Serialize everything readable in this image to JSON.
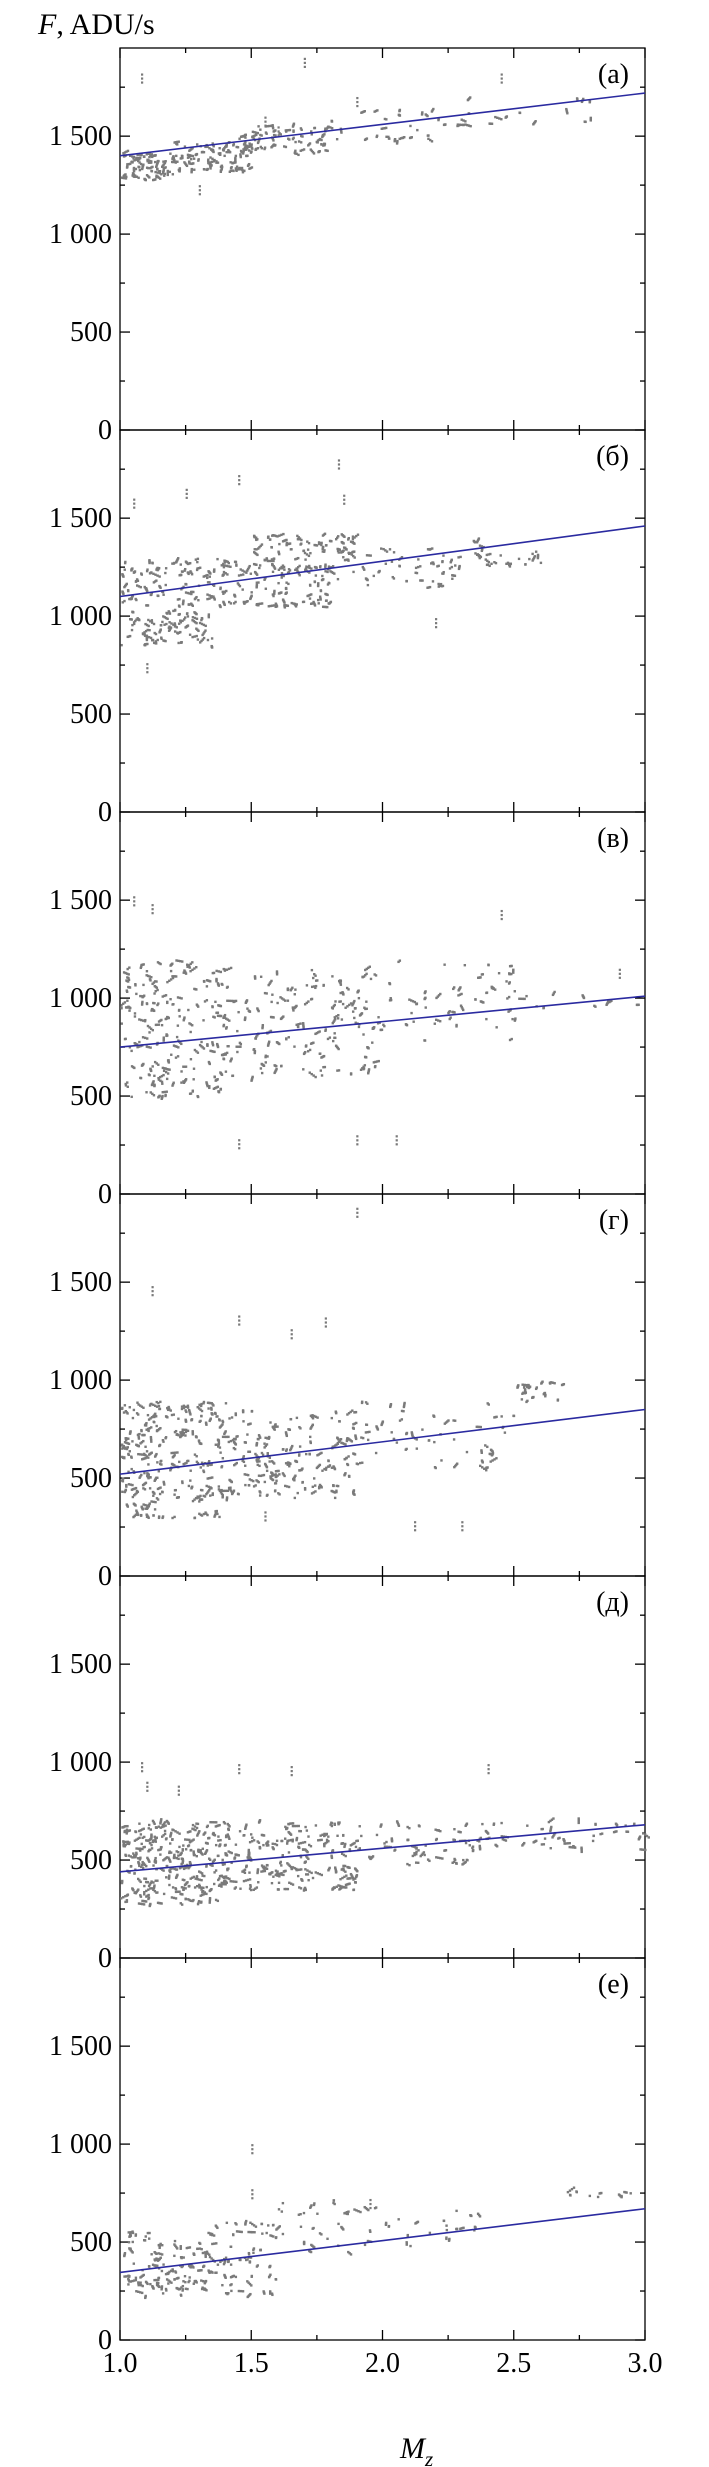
{
  "figure": {
    "ylabel_var": "F",
    "ylabel_unit": ", ADU/s",
    "xlabel_var": "M",
    "xlabel_sub": "z"
  },
  "chart_data": [
    {
      "type": "scatter",
      "panel_label": "(а)",
      "xlim": [
        1.0,
        3.0
      ],
      "ylim": [
        0,
        1950
      ],
      "x_ticks": [
        1.0,
        1.5,
        2.0,
        2.5,
        3.0
      ],
      "y_ticks": [
        0,
        500,
        1000,
        1500
      ],
      "y_tick_labels": [
        "0",
        "500",
        "1 000",
        "1 500"
      ],
      "x_tick_labels": [
        "1.0",
        "1.5",
        "2.0",
        "2.5",
        "3.0"
      ],
      "fit_line": {
        "x": [
          1.0,
          3.0
        ],
        "y": [
          1400,
          1720
        ]
      },
      "clusters": [
        {
          "x": [
            1.0,
            1.2
          ],
          "y": [
            1280,
            1420
          ],
          "n": 70
        },
        {
          "x": [
            1.2,
            1.5
          ],
          "y": [
            1320,
            1480
          ],
          "n": 90
        },
        {
          "x": [
            1.45,
            1.8
          ],
          "y": [
            1420,
            1560
          ],
          "n": 60
        },
        {
          "x": [
            1.8,
            2.2
          ],
          "y": [
            1480,
            1640
          ],
          "n": 25
        },
        {
          "x": [
            2.2,
            2.8
          ],
          "y": [
            1560,
            1720
          ],
          "n": 20
        }
      ],
      "scatter_extra": [
        [
          1.08,
          1820
        ],
        [
          1.7,
          1900
        ],
        [
          1.9,
          1700
        ],
        [
          2.45,
          1820
        ],
        [
          1.3,
          1250
        ],
        [
          1.55,
          1600
        ],
        [
          1.6,
          1550
        ]
      ]
    },
    {
      "type": "scatter",
      "panel_label": "(б)",
      "xlim": [
        1.0,
        3.0
      ],
      "ylim": [
        0,
        1950
      ],
      "x_ticks": [
        1.0,
        1.5,
        2.0,
        2.5,
        3.0
      ],
      "y_ticks": [
        0,
        500,
        1000,
        1500
      ],
      "y_tick_labels": [
        "0",
        "500",
        "1 000",
        "1 500"
      ],
      "x_tick_labels": [
        "1.0",
        "1.5",
        "2.0",
        "2.5",
        "3.0"
      ],
      "fit_line": {
        "x": [
          1.0,
          3.0
        ],
        "y": [
          1100,
          1460
        ]
      },
      "clusters": [
        {
          "x": [
            1.0,
            1.35
          ],
          "y": [
            850,
            1300
          ],
          "n": 140
        },
        {
          "x": [
            1.35,
            1.8
          ],
          "y": [
            1050,
            1300
          ],
          "n": 110
        },
        {
          "x": [
            1.5,
            1.9
          ],
          "y": [
            1320,
            1420
          ],
          "n": 50
        },
        {
          "x": [
            1.8,
            2.3
          ],
          "y": [
            1150,
            1360
          ],
          "n": 50
        },
        {
          "x": [
            2.3,
            2.6
          ],
          "y": [
            1250,
            1390
          ],
          "n": 25
        }
      ],
      "scatter_extra": [
        [
          1.05,
          1600
        ],
        [
          1.45,
          1720
        ],
        [
          1.83,
          1800
        ],
        [
          1.85,
          1620
        ],
        [
          2.2,
          990
        ],
        [
          1.1,
          760
        ],
        [
          1.25,
          1650
        ]
      ]
    },
    {
      "type": "scatter",
      "panel_label": "(в)",
      "xlim": [
        1.0,
        3.0
      ],
      "ylim": [
        0,
        1950
      ],
      "x_ticks": [
        1.0,
        1.5,
        2.0,
        2.5,
        3.0
      ],
      "y_ticks": [
        0,
        500,
        1000,
        1500
      ],
      "y_tick_labels": [
        "0",
        "500",
        "1 000",
        "1 500"
      ],
      "x_tick_labels": [
        "1.0",
        "1.5",
        "2.0",
        "2.5",
        "3.0"
      ],
      "fit_line": {
        "x": [
          1.0,
          3.0
        ],
        "y": [
          750,
          1010
        ]
      },
      "clusters": [
        {
          "x": [
            1.0,
            1.4
          ],
          "y": [
            500,
            1200
          ],
          "n": 170
        },
        {
          "x": [
            1.4,
            2.0
          ],
          "y": [
            600,
            1150
          ],
          "n": 140
        },
        {
          "x": [
            2.0,
            2.5
          ],
          "y": [
            780,
            1200
          ],
          "n": 50
        },
        {
          "x": [
            2.5,
            3.0
          ],
          "y": [
            950,
            1050
          ],
          "n": 10
        }
      ],
      "scatter_extra": [
        [
          1.05,
          1520
        ],
        [
          1.12,
          1480
        ],
        [
          2.45,
          1450
        ],
        [
          1.45,
          280
        ],
        [
          1.9,
          300
        ],
        [
          2.05,
          300
        ],
        [
          2.9,
          1150
        ]
      ]
    },
    {
      "type": "scatter",
      "panel_label": "(г)",
      "xlim": [
        1.0,
        3.0
      ],
      "ylim": [
        0,
        1950
      ],
      "x_ticks": [
        1.0,
        1.5,
        2.0,
        2.5,
        3.0
      ],
      "y_ticks": [
        0,
        500,
        1000,
        1500
      ],
      "y_tick_labels": [
        "0",
        "500",
        "1 000",
        "1 500"
      ],
      "x_tick_labels": [
        "1.0",
        "1.5",
        "2.0",
        "2.5",
        "3.0"
      ],
      "fit_line": {
        "x": [
          1.0,
          3.0
        ],
        "y": [
          520,
          850
        ]
      },
      "clusters": [
        {
          "x": [
            1.0,
            1.4
          ],
          "y": [
            300,
            900
          ],
          "n": 220
        },
        {
          "x": [
            1.4,
            1.9
          ],
          "y": [
            400,
            850
          ],
          "n": 150
        },
        {
          "x": [
            1.9,
            2.5
          ],
          "y": [
            550,
            900
          ],
          "n": 50
        },
        {
          "x": [
            2.5,
            2.7
          ],
          "y": [
            900,
            1000
          ],
          "n": 20
        }
      ],
      "scatter_extra": [
        [
          1.12,
          1480
        ],
        [
          1.45,
          1330
        ],
        [
          1.65,
          1260
        ],
        [
          1.78,
          1320
        ],
        [
          1.9,
          1880
        ],
        [
          2.12,
          280
        ],
        [
          2.3,
          280
        ],
        [
          1.55,
          330
        ]
      ]
    },
    {
      "type": "scatter",
      "panel_label": "(д)",
      "xlim": [
        1.0,
        3.0
      ],
      "ylim": [
        0,
        1950
      ],
      "x_ticks": [
        1.0,
        1.5,
        2.0,
        2.5,
        3.0
      ],
      "y_ticks": [
        0,
        500,
        1000,
        1500
      ],
      "y_tick_labels": [
        "0",
        "500",
        "1 000",
        "1 500"
      ],
      "x_tick_labels": [
        "1.0",
        "1.5",
        "2.0",
        "2.5",
        "3.0"
      ],
      "fit_line": {
        "x": [
          1.0,
          3.0
        ],
        "y": [
          440,
          680
        ]
      },
      "clusters": [
        {
          "x": [
            1.0,
            1.4
          ],
          "y": [
            280,
            700
          ],
          "n": 220
        },
        {
          "x": [
            1.4,
            1.9
          ],
          "y": [
            350,
            700
          ],
          "n": 160
        },
        {
          "x": [
            1.9,
            2.5
          ],
          "y": [
            480,
            700
          ],
          "n": 60
        },
        {
          "x": [
            2.5,
            3.0
          ],
          "y": [
            560,
            700
          ],
          "n": 30
        }
      ],
      "scatter_extra": [
        [
          1.1,
          900
        ],
        [
          1.22,
          880
        ],
        [
          1.45,
          990
        ],
        [
          1.65,
          980
        ],
        [
          2.4,
          990
        ],
        [
          1.08,
          1000
        ]
      ]
    },
    {
      "type": "scatter",
      "panel_label": "(е)",
      "xlim": [
        1.0,
        3.0
      ],
      "ylim": [
        0,
        1950
      ],
      "x_ticks": [
        1.0,
        1.5,
        2.0,
        2.5,
        3.0
      ],
      "y_ticks": [
        0,
        500,
        1000,
        1500
      ],
      "y_tick_labels": [
        "0",
        "500",
        "1 000",
        "1 500"
      ],
      "x_tick_labels": [
        "1.0",
        "1.5",
        "2.0",
        "2.5",
        "3.0"
      ],
      "fit_line": {
        "x": [
          1.0,
          3.0
        ],
        "y": [
          345,
          670
        ]
      },
      "clusters": [
        {
          "x": [
            1.0,
            1.3
          ],
          "y": [
            230,
            560
          ],
          "n": 90
        },
        {
          "x": [
            1.3,
            1.6
          ],
          "y": [
            240,
            620
          ],
          "n": 70
        },
        {
          "x": [
            1.6,
            2.0
          ],
          "y": [
            440,
            720
          ],
          "n": 30
        },
        {
          "x": [
            2.0,
            2.4
          ],
          "y": [
            480,
            680
          ],
          "n": 20
        },
        {
          "x": [
            2.7,
            2.95
          ],
          "y": [
            730,
            780
          ],
          "n": 10
        }
      ],
      "scatter_extra": [
        [
          1.5,
          1000
        ],
        [
          1.5,
          770
        ],
        [
          1.95,
          720
        ]
      ]
    }
  ]
}
